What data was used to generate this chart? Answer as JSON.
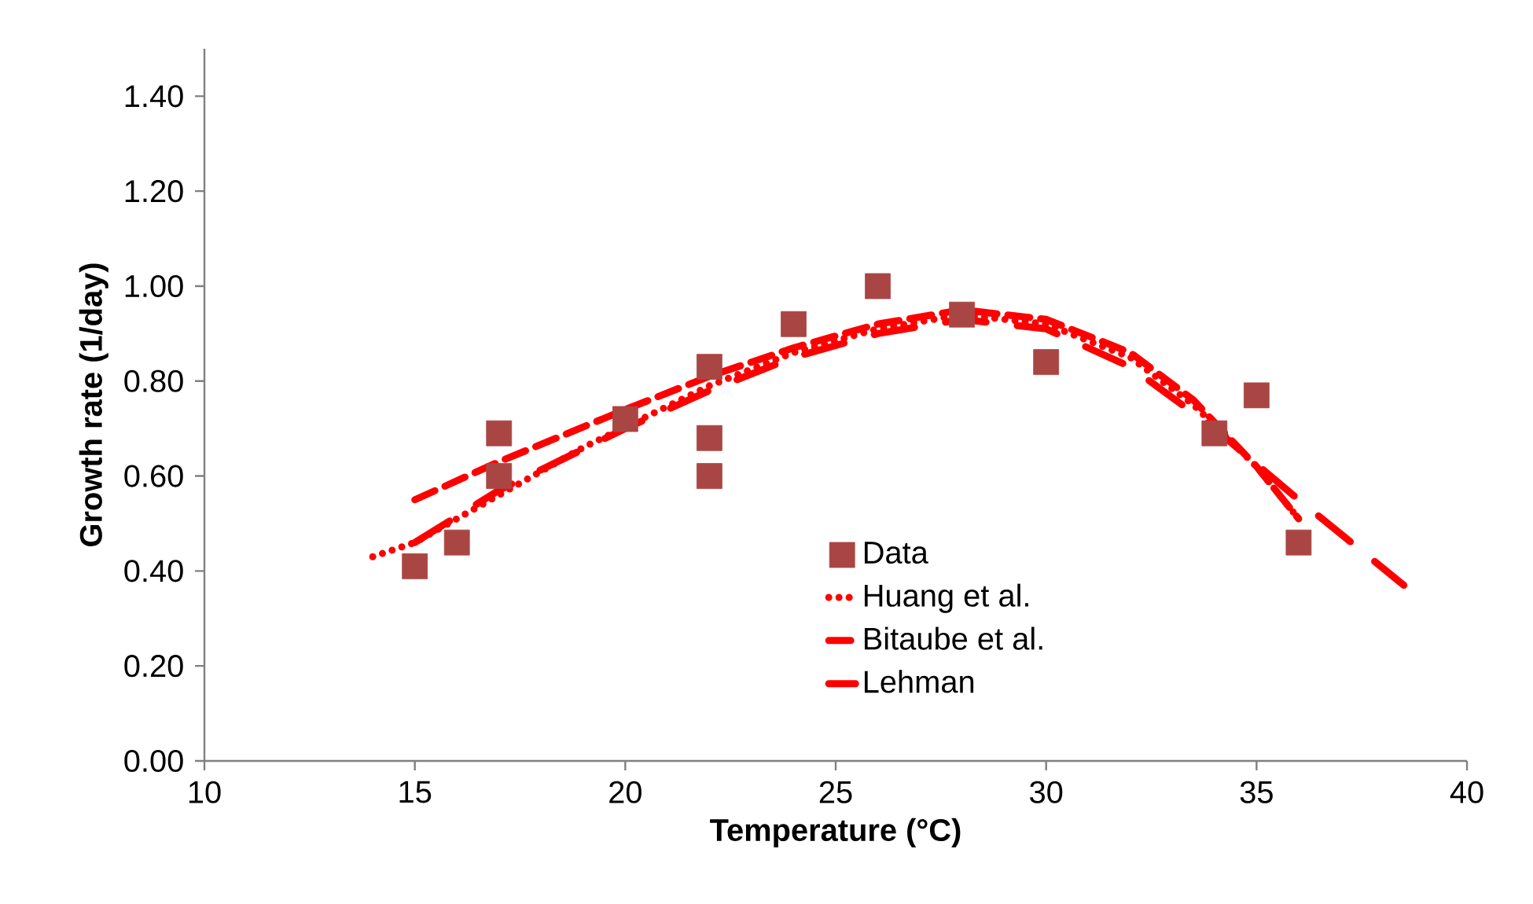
{
  "chart_data": {
    "type": "scatter",
    "xlabel": "Temperature (°C)",
    "ylabel": "Growth rate (1/day)",
    "xlim": [
      10,
      40
    ],
    "xticks": [
      10,
      15,
      20,
      25,
      30,
      35,
      40
    ],
    "ylim": [
      0,
      1.5
    ],
    "yticks": [
      {
        "value": 0,
        "label": "0.00"
      },
      {
        "value": 0.2,
        "label": "0.20"
      },
      {
        "value": 0.4,
        "label": "0.40"
      },
      {
        "value": 0.6,
        "label": "0.60"
      },
      {
        "value": 0.8,
        "label": "0.80"
      },
      {
        "value": 1.0,
        "label": "1.00"
      },
      {
        "value": 1.2,
        "label": "1.20"
      },
      {
        "value": 1.4,
        "label": "1.40"
      }
    ],
    "grid": false,
    "legend": "bottom",
    "series": [
      {
        "name": "Data",
        "marker": "square",
        "color": "#a94644",
        "x": [
          15,
          16,
          17,
          17,
          20,
          22,
          22,
          22,
          24,
          26,
          28,
          30,
          34,
          35,
          36
        ],
        "values": [
          0.41,
          0.46,
          0.69,
          0.6,
          0.72,
          0.83,
          0.68,
          0.6,
          0.92,
          1.0,
          0.94,
          0.84,
          0.69,
          0.77,
          0.46
        ]
      },
      {
        "name": "Huang et al.",
        "type": "line",
        "line_style": "dotted",
        "marker": "none",
        "color": "#ff0000",
        "x": [
          14,
          15,
          17,
          19,
          22,
          24,
          26,
          28,
          30,
          32,
          33.5,
          35,
          36
        ],
        "values": [
          0.43,
          0.46,
          0.56,
          0.66,
          0.79,
          0.86,
          0.91,
          0.94,
          0.92,
          0.85,
          0.75,
          0.62,
          0.51
        ]
      },
      {
        "name": "Bitaube et al.",
        "type": "line",
        "line_style": "dashed",
        "marker": "none",
        "color": "#ff0000",
        "x": [
          15,
          17,
          20,
          22,
          24,
          26,
          28,
          30,
          32,
          33.5,
          35,
          36
        ],
        "values": [
          0.55,
          0.63,
          0.74,
          0.81,
          0.87,
          0.92,
          0.95,
          0.93,
          0.86,
          0.76,
          0.62,
          0.51
        ]
      },
      {
        "name": "Lehman",
        "type": "line",
        "line_style": "dashdot",
        "marker": "none",
        "color": "#ff0000",
        "x": [
          15,
          17,
          20,
          22,
          24,
          26,
          28,
          30,
          32,
          34,
          36,
          38.5
        ],
        "values": [
          0.46,
          0.57,
          0.7,
          0.78,
          0.85,
          0.9,
          0.93,
          0.91,
          0.83,
          0.7,
          0.55,
          0.37
        ]
      }
    ]
  }
}
